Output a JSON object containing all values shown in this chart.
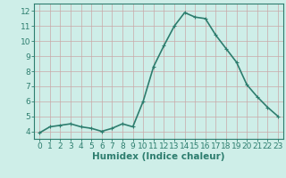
{
  "x": [
    0,
    1,
    2,
    3,
    4,
    5,
    6,
    7,
    8,
    9,
    10,
    11,
    12,
    13,
    14,
    15,
    16,
    17,
    18,
    19,
    20,
    21,
    22,
    23
  ],
  "y": [
    3.9,
    4.3,
    4.4,
    4.5,
    4.3,
    4.2,
    4.0,
    4.2,
    4.5,
    4.3,
    6.0,
    8.3,
    9.7,
    11.0,
    11.9,
    11.6,
    11.5,
    10.4,
    9.5,
    8.6,
    7.1,
    6.3,
    5.6,
    5.0
  ],
  "line_color": "#2d7d6e",
  "marker_color": "#2d7d6e",
  "bg_color": "#ceeee8",
  "grid_color": "#c9a8a8",
  "xlabel": "Humidex (Indice chaleur)",
  "xlim": [
    -0.5,
    23.5
  ],
  "ylim": [
    3.5,
    12.5
  ],
  "yticks": [
    4,
    5,
    6,
    7,
    8,
    9,
    10,
    11,
    12
  ],
  "xticks": [
    0,
    1,
    2,
    3,
    4,
    5,
    6,
    7,
    8,
    9,
    10,
    11,
    12,
    13,
    14,
    15,
    16,
    17,
    18,
    19,
    20,
    21,
    22,
    23
  ],
  "tick_label_fontsize": 6.5,
  "xlabel_fontsize": 7.5,
  "line_width": 1.2,
  "marker_size": 2.5
}
